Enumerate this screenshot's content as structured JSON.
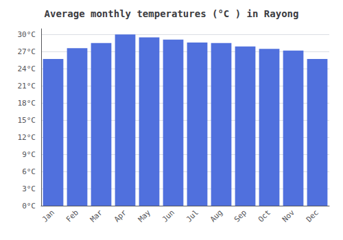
{
  "chart_data": {
    "type": "bar",
    "title": "Average monthly temperatures (°C ) in Rayong",
    "categories": [
      "Jan",
      "Feb",
      "Mar",
      "Apr",
      "May",
      "Jun",
      "Jul",
      "Aug",
      "Sep",
      "Oct",
      "Nov",
      "Dec"
    ],
    "values": [
      25.7,
      27.6,
      28.5,
      30.0,
      29.5,
      29.1,
      28.6,
      28.5,
      27.9,
      27.5,
      27.2,
      25.7
    ],
    "ylim": [
      0,
      31
    ],
    "yticks": [
      {
        "value": 0,
        "label": "0°C"
      },
      {
        "value": 3,
        "label": "3°C"
      },
      {
        "value": 6,
        "label": "6°C"
      },
      {
        "value": 9,
        "label": "9°C"
      },
      {
        "value": 12,
        "label": "12°C"
      },
      {
        "value": 15,
        "label": "15°C"
      },
      {
        "value": 18,
        "label": "18°C"
      },
      {
        "value": 21,
        "label": "21°C"
      },
      {
        "value": 24,
        "label": "24°C"
      },
      {
        "value": 27,
        "label": "27°C"
      },
      {
        "value": 30,
        "label": "30°C"
      }
    ],
    "grid": true
  }
}
